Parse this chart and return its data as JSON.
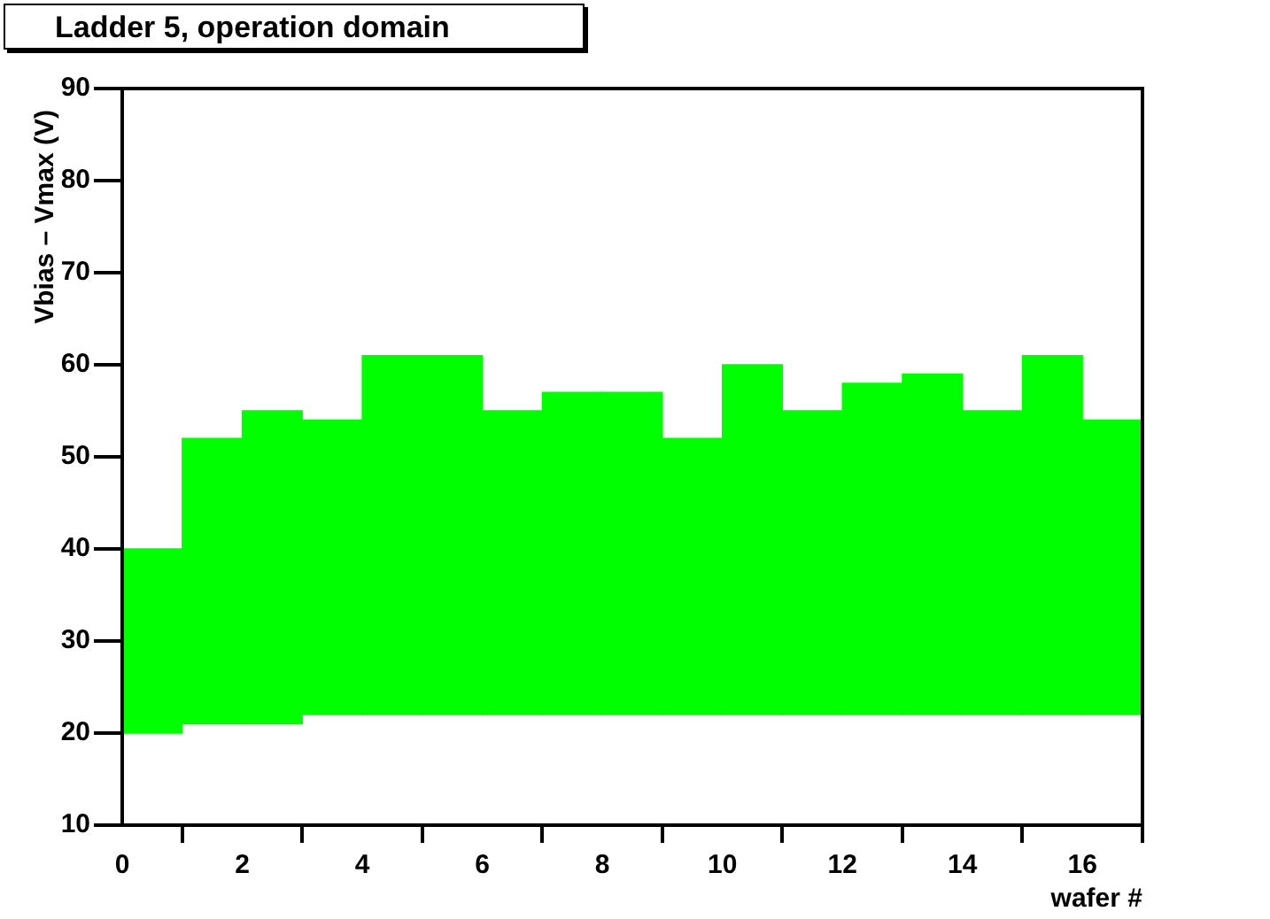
{
  "chart_data": {
    "type": "bar",
    "title": "Ladder 5, operation domain",
    "xlabel": "wafer #",
    "ylabel": "Vbias – Vmax (V)",
    "x": [
      0.5,
      1.5,
      2.5,
      3.5,
      4.5,
      5.5,
      6.5,
      7.5,
      8.5,
      9.5,
      10.5,
      11.5,
      12.5,
      13.5,
      14.5,
      15.5,
      16.5
    ],
    "base": [
      20,
      21,
      21,
      22,
      22,
      22,
      22,
      22,
      22,
      22,
      22,
      22,
      22,
      22,
      22,
      22,
      22
    ],
    "values": [
      20,
      31,
      34,
      32,
      39,
      39,
      33,
      35,
      35,
      30,
      38,
      33,
      36,
      37,
      33,
      39,
      32
    ],
    "color": "#00ff00",
    "xlim": [
      0,
      17
    ],
    "xticks": [
      0,
      2,
      4,
      6,
      8,
      10,
      12,
      14,
      16
    ],
    "ylim": [
      10,
      90
    ],
    "yticks": [
      10,
      20,
      30,
      40,
      50,
      60,
      70,
      80,
      90
    ],
    "grid": false,
    "legend": false
  }
}
